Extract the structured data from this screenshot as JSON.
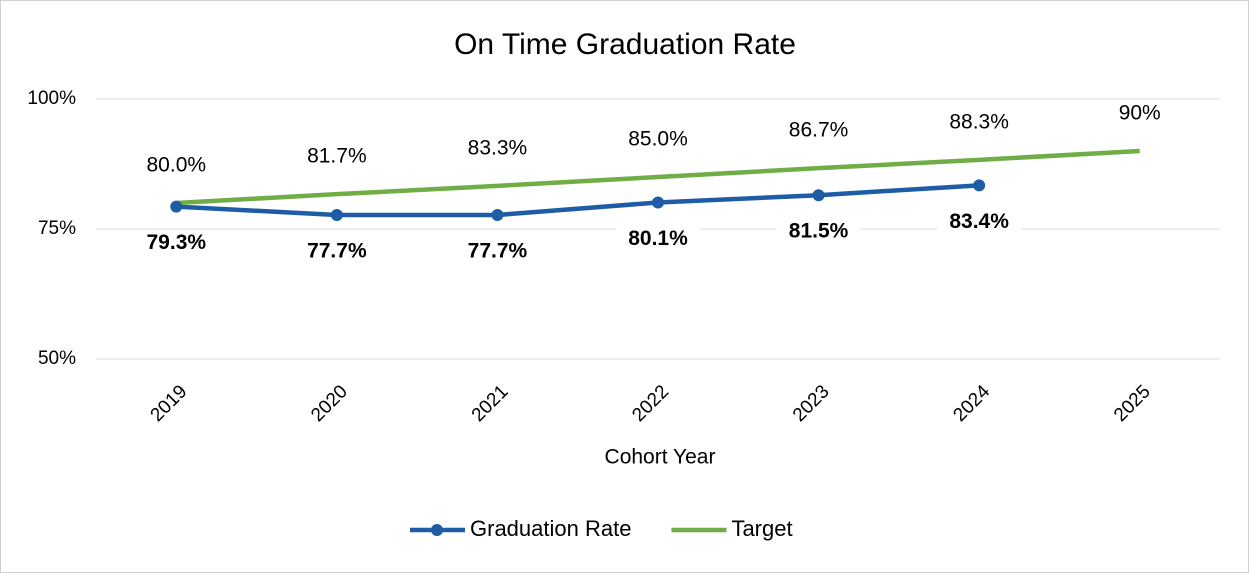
{
  "chart_data": {
    "type": "line",
    "title": "On Time Graduation Rate",
    "x_label": "Cohort Year",
    "categories": [
      "2019",
      "2020",
      "2021",
      "2022",
      "2023",
      "2024",
      "2025"
    ],
    "series": [
      {
        "name": "Graduation Rate",
        "color": "#1f5ca6",
        "markers": true,
        "values": [
          79.3,
          77.7,
          77.7,
          80.1,
          81.5,
          83.4,
          null
        ],
        "value_labels": [
          "79.3%",
          "77.7%",
          "77.7%",
          "80.1%",
          "81.5%",
          "83.4%",
          null
        ]
      },
      {
        "name": "Target",
        "color": "#70ad47",
        "markers": false,
        "values": [
          80.0,
          81.7,
          83.3,
          85.0,
          86.7,
          88.3,
          90
        ],
        "value_labels": [
          "80.0%",
          "81.7%",
          "83.3%",
          "85.0%",
          "86.7%",
          "88.3%",
          "90%"
        ]
      }
    ],
    "ylim": [
      50,
      100
    ],
    "yticks": [
      {
        "value": 50,
        "label": "50%"
      },
      {
        "value": 75,
        "label": "75%"
      },
      {
        "value": 100,
        "label": "100%"
      }
    ],
    "grid": true,
    "legend": "bottom"
  }
}
